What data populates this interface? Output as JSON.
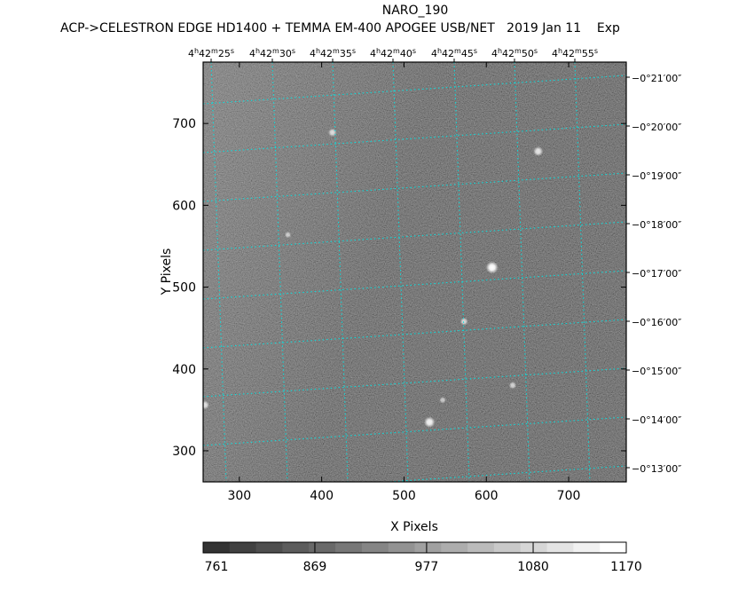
{
  "header": {
    "object": "NARO_190",
    "subtitle": "ACP->CELESTRON EDGE HD1400 + TEMMA EM-400 APOGEE USB/NET   2019 Jan 11    Exp"
  },
  "chart_data": {
    "type": "heatmap",
    "title": "NARO_190",
    "xlabel": "X Pixels",
    "ylabel": "Y Pixels",
    "xlim": [
      256,
      770
    ],
    "ylim": [
      262,
      775
    ],
    "x_ticks": [
      300,
      400,
      500,
      600,
      700
    ],
    "y_ticks": [
      300,
      400,
      500,
      600,
      700
    ],
    "ra_ticks": [
      {
        "h": "4",
        "m": "42",
        "s": "25"
      },
      {
        "h": "4",
        "m": "42",
        "s": "30"
      },
      {
        "h": "4",
        "m": "42",
        "s": "35"
      },
      {
        "h": "4",
        "m": "42",
        "s": "40"
      },
      {
        "h": "4",
        "m": "42",
        "s": "45"
      },
      {
        "h": "4",
        "m": "42",
        "s": "50"
      },
      {
        "h": "4",
        "m": "42",
        "s": "55"
      }
    ],
    "dec_ticks": [
      "−0°21′00″",
      "−0°20′00″",
      "−0°19′00″",
      "−0°18′00″",
      "−0°17′00″",
      "−0°16′00″",
      "−0°15′00″",
      "−0°14′00″",
      "−0°13′00″"
    ],
    "grid": true,
    "grid_color": "#00e5e5",
    "colormap": "gray",
    "colorbar": {
      "min": 761,
      "max": 1170,
      "steps": 16,
      "labels": [
        "761",
        "869",
        "977",
        "1080",
        "1170"
      ],
      "placement": "bottom"
    },
    "stars": [
      {
        "x": 607,
        "y": 524,
        "brightness": 1.0
      },
      {
        "x": 531,
        "y": 335,
        "brightness": 0.85
      },
      {
        "x": 663,
        "y": 666,
        "brightness": 0.7
      },
      {
        "x": 413,
        "y": 689,
        "brightness": 0.55
      },
      {
        "x": 573,
        "y": 458,
        "brightness": 0.5
      },
      {
        "x": 632,
        "y": 380,
        "brightness": 0.45
      },
      {
        "x": 359,
        "y": 564,
        "brightness": 0.35
      },
      {
        "x": 547,
        "y": 362,
        "brightness": 0.35
      },
      {
        "x": 258,
        "y": 356,
        "brightness": 0.6
      }
    ]
  }
}
